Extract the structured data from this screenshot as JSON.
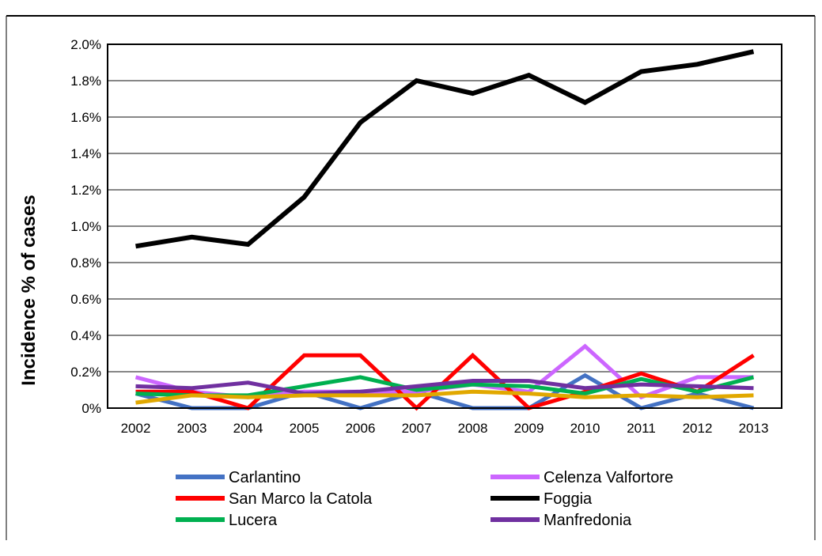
{
  "chart_data": {
    "type": "line",
    "title": "",
    "xlabel": "",
    "ylabel": "Incidence % of cases",
    "ylim": [
      0,
      2.0
    ],
    "y_ticks": [
      "0%",
      "0.2%",
      "0.4%",
      "0.6%",
      "0.8%",
      "1.0%",
      "1.2%",
      "1.4%",
      "1.6%",
      "1.8%",
      "2.0%"
    ],
    "y_tick_values": [
      0,
      0.2,
      0.4,
      0.6,
      0.8,
      1.0,
      1.2,
      1.4,
      1.6,
      1.8,
      2.0
    ],
    "grid": true,
    "legend_position": "bottom",
    "categories": [
      "2002",
      "2003",
      "2004",
      "2005",
      "2006",
      "2007",
      "2008",
      "2009",
      "2010",
      "2011",
      "2012",
      "2013"
    ],
    "series": [
      {
        "name": "Carlantino",
        "color": "#4472C4",
        "in_legend": true,
        "values": [
          0.08,
          0.0,
          0.0,
          0.09,
          0.0,
          0.09,
          0.0,
          0.0,
          0.18,
          0.0,
          0.08,
          0.0
        ]
      },
      {
        "name": "Celenza Valfortore",
        "color": "#CC66FF",
        "in_legend": true,
        "values": [
          0.17,
          0.09,
          0.06,
          0.09,
          0.09,
          0.09,
          0.13,
          0.09,
          0.34,
          0.06,
          0.17,
          0.17
        ]
      },
      {
        "name": "San Marco la Catola",
        "color": "#FF0000",
        "in_legend": true,
        "values": [
          0.09,
          0.09,
          0.0,
          0.29,
          0.29,
          0.0,
          0.29,
          0.0,
          0.09,
          0.19,
          0.09,
          0.29
        ]
      },
      {
        "name": "Foggia",
        "color": "#000000",
        "in_legend": true,
        "values": [
          0.89,
          0.94,
          0.9,
          1.16,
          1.57,
          1.8,
          1.73,
          1.83,
          1.68,
          1.85,
          1.89,
          1.96
        ]
      },
      {
        "name": "Lucera",
        "color": "#00B050",
        "in_legend": true,
        "values": [
          0.08,
          0.07,
          0.07,
          0.12,
          0.17,
          0.1,
          0.13,
          0.12,
          0.08,
          0.16,
          0.09,
          0.17
        ]
      },
      {
        "name": "Manfredonia",
        "color": "#7030A0",
        "in_legend": true,
        "values": [
          0.12,
          0.11,
          0.14,
          0.08,
          0.09,
          0.12,
          0.15,
          0.15,
          0.11,
          0.13,
          0.12,
          0.11
        ]
      },
      {
        "name": "",
        "color": "#E1A800",
        "in_legend": false,
        "values": [
          0.03,
          0.07,
          0.06,
          0.07,
          0.07,
          0.07,
          0.09,
          0.08,
          0.06,
          0.07,
          0.06,
          0.07
        ]
      }
    ]
  }
}
